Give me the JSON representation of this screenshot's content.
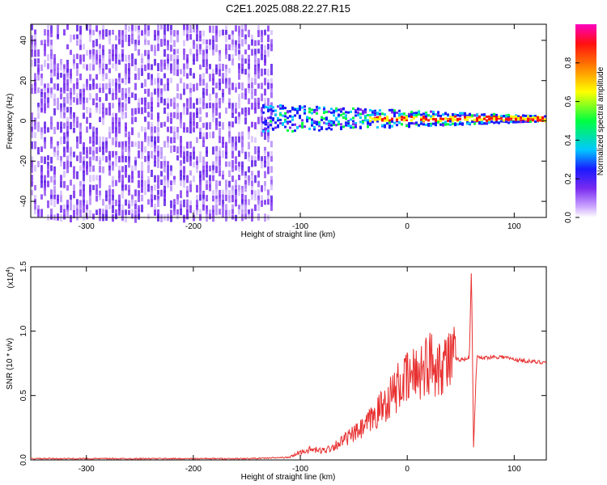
{
  "title": "C2E1.2025.088.22.27.R15",
  "colors": {
    "spectrogram_noise": "#7a2bf0",
    "signal_line": "#e83030",
    "colorbar": [
      "#ffffff",
      "#8a2be2",
      "#0000ff",
      "#00c8ff",
      "#00ff00",
      "#ffff00",
      "#ff7f00",
      "#ff0000",
      "#ff00ff"
    ]
  },
  "chart_data": [
    {
      "type": "heatmap",
      "xlabel": "Height of straight line (km)",
      "ylabel": "Frequency (Hz)",
      "xlim": [
        -352,
        130
      ],
      "ylim": [
        -48,
        48
      ],
      "x_ticks": [
        -300,
        -200,
        -100,
        0,
        100
      ],
      "x_tick_labels": [
        "-300",
        "-200",
        "-100",
        "0",
        "100"
      ],
      "y_ticks": [
        -40,
        -20,
        0,
        20,
        40
      ],
      "y_tick_labels": [
        "-40",
        "-20",
        "0",
        "20",
        "40"
      ],
      "noise_region_x": [
        -352,
        -128
      ],
      "signal_band_center_hz": 1,
      "colorbar": {
        "label": "Normalized spectral amplitude",
        "range": [
          0,
          1
        ],
        "ticks": [
          0.0,
          0.2,
          0.4,
          0.6,
          0.8
        ],
        "tick_labels": [
          "0.0",
          "0.2",
          "0.4",
          "0.6",
          "0.8"
        ]
      },
      "grid": false
    },
    {
      "type": "line",
      "xlabel": "Height of straight line (km)",
      "ylabel": "SNR (10 * v/v)",
      "y_scale_label": "(x10",
      "y_scale_exp": "4",
      "y_scale_suffix": ")",
      "xlim": [
        -352,
        130
      ],
      "ylim": [
        0,
        1.5
      ],
      "x_ticks": [
        -300,
        -200,
        -100,
        0,
        100
      ],
      "x_tick_labels": [
        "-300",
        "-200",
        "-100",
        "0",
        "100"
      ],
      "y_ticks": [
        0.0,
        0.5,
        1.0,
        1.5
      ],
      "y_tick_labels": [
        "0.0",
        "0.5",
        "1.0",
        "1.5"
      ],
      "series": [
        {
          "x": [
            -352,
            -300,
            -250,
            -200,
            -150,
            -110,
            -100,
            -90,
            -80,
            -70,
            -60,
            -50,
            -40,
            -30,
            -25,
            -20,
            -15,
            -10,
            -5,
            0,
            5,
            10,
            15,
            20,
            30,
            40,
            50,
            55,
            58,
            60,
            62,
            65,
            70,
            80,
            90,
            100,
            110,
            120,
            130
          ],
          "y": [
            0.01,
            0.01,
            0.01,
            0.01,
            0.01,
            0.02,
            0.06,
            0.08,
            0.07,
            0.1,
            0.15,
            0.2,
            0.25,
            0.35,
            0.4,
            0.45,
            0.5,
            0.55,
            0.6,
            0.62,
            0.65,
            0.7,
            0.72,
            0.75,
            0.76,
            0.78,
            0.78,
            0.78,
            0.8,
            1.5,
            0.1,
            0.8,
            0.79,
            0.8,
            0.8,
            0.78,
            0.77,
            0.76,
            0.76
          ]
        }
      ],
      "grid": false
    }
  ]
}
